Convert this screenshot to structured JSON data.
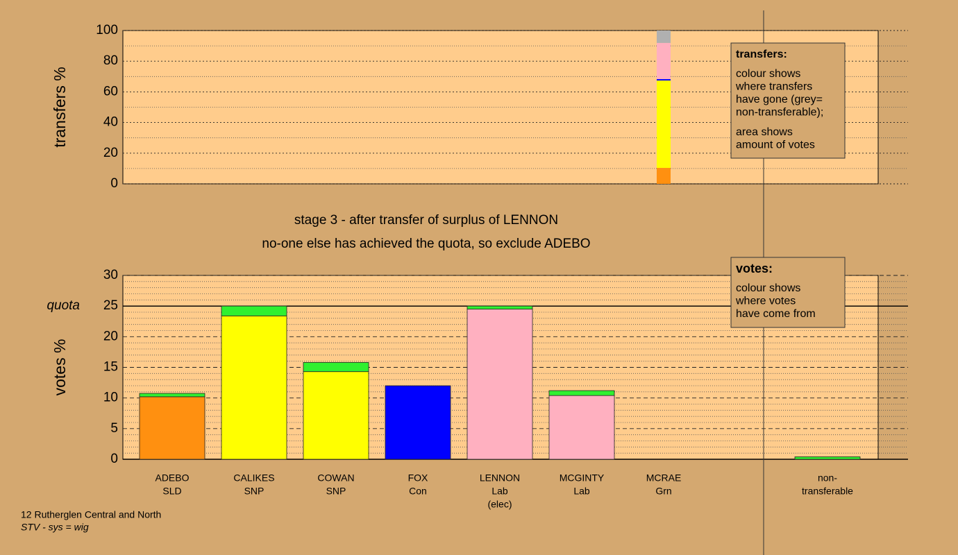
{
  "chart_data": [
    {
      "type": "stacked-bar",
      "ylabel": "transfers %",
      "ylim": [
        0,
        100
      ],
      "yticks": [
        0,
        20,
        40,
        60,
        80,
        100
      ],
      "minor_yticks": [
        10,
        30,
        50,
        70,
        90
      ],
      "series": [
        {
          "color": "#ff9010",
          "values": [
            null,
            null,
            null,
            null,
            null,
            null,
            10.4,
            null,
            null
          ]
        },
        {
          "color": "#ffff00",
          "values": [
            null,
            null,
            null,
            null,
            null,
            null,
            57,
            null,
            null
          ]
        },
        {
          "color": "#0000ff",
          "values": [
            null,
            null,
            null,
            null,
            null,
            null,
            0.9,
            null,
            null
          ]
        },
        {
          "color": "#ffb0c0",
          "values": [
            null,
            null,
            null,
            null,
            null,
            null,
            23.6,
            null,
            null
          ]
        },
        {
          "color": "#b0b0b0",
          "values": [
            null,
            null,
            null,
            null,
            null,
            null,
            8.1,
            null,
            null
          ]
        }
      ],
      "legend": {
        "title": "transfers:",
        "lines": [
          "colour shows",
          "where transfers",
          "have gone (grey=",
          "non-transferable);"
        ],
        "lines2": [
          "area shows",
          "amount of votes"
        ]
      }
    },
    {
      "type": "stacked-bar",
      "ylabel": "votes %",
      "title": [
        "stage 3 - after transfer of surplus of LENNON",
        "no-one else has achieved the quota, so exclude ADEBO"
      ],
      "categories": [
        [
          "ADEBO",
          "SLD"
        ],
        [
          "CALIKES",
          "SNP"
        ],
        [
          "COWAN",
          "SNP"
        ],
        [
          "FOX",
          "Con"
        ],
        [
          "LENNON",
          "Lab",
          "(elec)"
        ],
        [
          "MCGINTY",
          "Lab"
        ],
        [
          "MCRAE",
          "Grn"
        ],
        null,
        [
          "non-",
          "transferable"
        ]
      ],
      "ylim": [
        0,
        30
      ],
      "yticks": [
        0,
        5,
        10,
        15,
        20,
        25,
        30
      ],
      "minor_yticks": [
        1,
        2,
        3,
        4,
        6,
        7,
        8,
        9,
        11,
        12,
        13,
        14,
        16,
        17,
        18,
        19,
        21,
        22,
        23,
        24,
        26,
        27,
        28,
        29
      ],
      "quota": 25,
      "quota_label": "quota",
      "series": [
        {
          "color": "#ff9010",
          "values": [
            10.2,
            null,
            null,
            null,
            null,
            null,
            null,
            null,
            null
          ]
        },
        {
          "color": "#ffff00",
          "values": [
            null,
            23.4,
            14.3,
            null,
            null,
            null,
            null,
            null,
            null
          ]
        },
        {
          "color": "#0000ff",
          "values": [
            null,
            null,
            null,
            12.0,
            null,
            null,
            null,
            null,
            null
          ]
        },
        {
          "color": "#ffb0c0",
          "values": [
            null,
            null,
            null,
            null,
            24.5,
            10.4,
            null,
            null,
            null
          ]
        },
        {
          "color": "#30f030",
          "values": [
            0.55,
            1.6,
            1.5,
            null,
            0.5,
            0.8,
            null,
            null,
            0.4
          ]
        }
      ],
      "legend": {
        "title": "votes:",
        "lines": [
          "colour shows",
          "where votes",
          "have come from"
        ]
      }
    }
  ],
  "footer": [
    "12 Rutherglen Central and North",
    "STV - sys = wig"
  ]
}
